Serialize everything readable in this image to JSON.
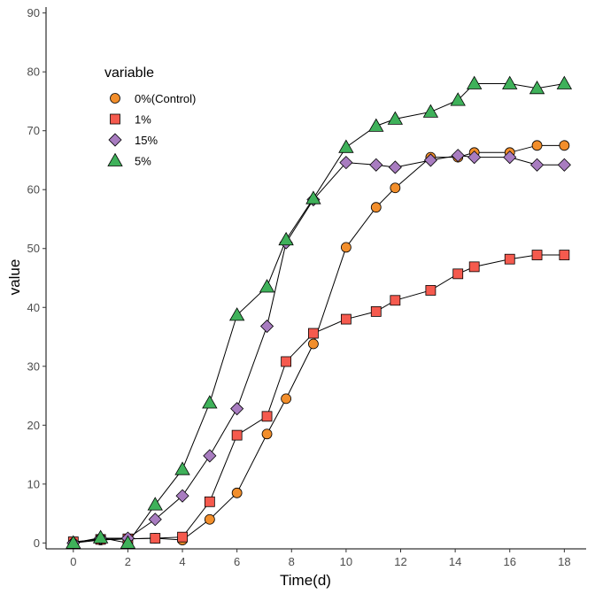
{
  "chart_data": {
    "type": "line",
    "title": "",
    "xlabel": "Time(d)",
    "ylabel": "value",
    "xlim": [
      -1,
      18.8
    ],
    "ylim": [
      -1,
      91
    ],
    "xticks": [
      0,
      2,
      4,
      6,
      8,
      10,
      12,
      14,
      16,
      18
    ],
    "yticks": [
      0,
      10,
      20,
      30,
      40,
      50,
      60,
      70,
      80,
      90
    ],
    "grid": false,
    "legend": {
      "title": "variable",
      "position": "top-left"
    },
    "series": [
      {
        "name": "0%(Control)",
        "marker": "circle",
        "color": "#F28E2B",
        "points": [
          [
            0,
            0
          ],
          [
            1,
            0.5
          ],
          [
            2,
            0.7
          ],
          [
            3,
            0.8
          ],
          [
            4,
            0.5
          ],
          [
            5,
            4
          ],
          [
            6,
            8.5
          ],
          [
            7.1,
            18.5
          ],
          [
            7.8,
            24.5
          ],
          [
            8.8,
            33.8
          ],
          [
            10,
            50.2
          ],
          [
            11.1,
            57
          ],
          [
            11.8,
            60.3
          ],
          [
            13.1,
            65.5
          ],
          [
            14.1,
            65.5
          ],
          [
            14.7,
            66.3
          ],
          [
            16,
            66.3
          ],
          [
            17,
            67.5
          ],
          [
            18,
            67.5
          ]
        ]
      },
      {
        "name": "1%",
        "marker": "square",
        "color": "#F55A4E",
        "points": [
          [
            0,
            0.2
          ],
          [
            1,
            0.6
          ],
          [
            2,
            0.7
          ],
          [
            3,
            0.8
          ],
          [
            4,
            1
          ],
          [
            5,
            7
          ],
          [
            6,
            18.3
          ],
          [
            7.1,
            21.5
          ],
          [
            7.8,
            30.8
          ],
          [
            8.8,
            35.6
          ],
          [
            10,
            38
          ],
          [
            11.1,
            39.3
          ],
          [
            11.8,
            41.2
          ],
          [
            13.1,
            42.9
          ],
          [
            14.1,
            45.7
          ],
          [
            14.7,
            46.9
          ],
          [
            16,
            48.2
          ],
          [
            17,
            48.9
          ],
          [
            18,
            48.9
          ]
        ]
      },
      {
        "name": "15%",
        "marker": "diamond",
        "color": "#A87CC0",
        "points": [
          [
            0,
            0
          ],
          [
            1,
            0.8
          ],
          [
            2,
            0.8
          ],
          [
            3,
            4
          ],
          [
            4,
            8
          ],
          [
            5,
            14.8
          ],
          [
            6,
            22.8
          ],
          [
            7.1,
            36.8
          ],
          [
            7.8,
            51
          ],
          [
            8.8,
            58.3
          ],
          [
            10,
            64.6
          ],
          [
            11.1,
            64.2
          ],
          [
            11.8,
            63.8
          ],
          [
            13.1,
            65
          ],
          [
            14.1,
            65.8
          ],
          [
            14.7,
            65.5
          ],
          [
            16,
            65.5
          ],
          [
            17,
            64.2
          ],
          [
            18,
            64.2
          ]
        ]
      },
      {
        "name": "5%",
        "marker": "triangle",
        "color": "#3FB15A",
        "points": [
          [
            0,
            0
          ],
          [
            1,
            0.9
          ],
          [
            2,
            0
          ],
          [
            3,
            6.5
          ],
          [
            4,
            12.5
          ],
          [
            5,
            23.8
          ],
          [
            6,
            38.7
          ],
          [
            7.1,
            43.5
          ],
          [
            7.8,
            51.5
          ],
          [
            8.8,
            58.5
          ],
          [
            10,
            67.2
          ],
          [
            11.1,
            70.8
          ],
          [
            11.8,
            72
          ],
          [
            13.1,
            73.2
          ],
          [
            14.1,
            75.2
          ],
          [
            14.7,
            78
          ],
          [
            16,
            78
          ],
          [
            17,
            77.2
          ],
          [
            18,
            78
          ]
        ]
      }
    ]
  }
}
